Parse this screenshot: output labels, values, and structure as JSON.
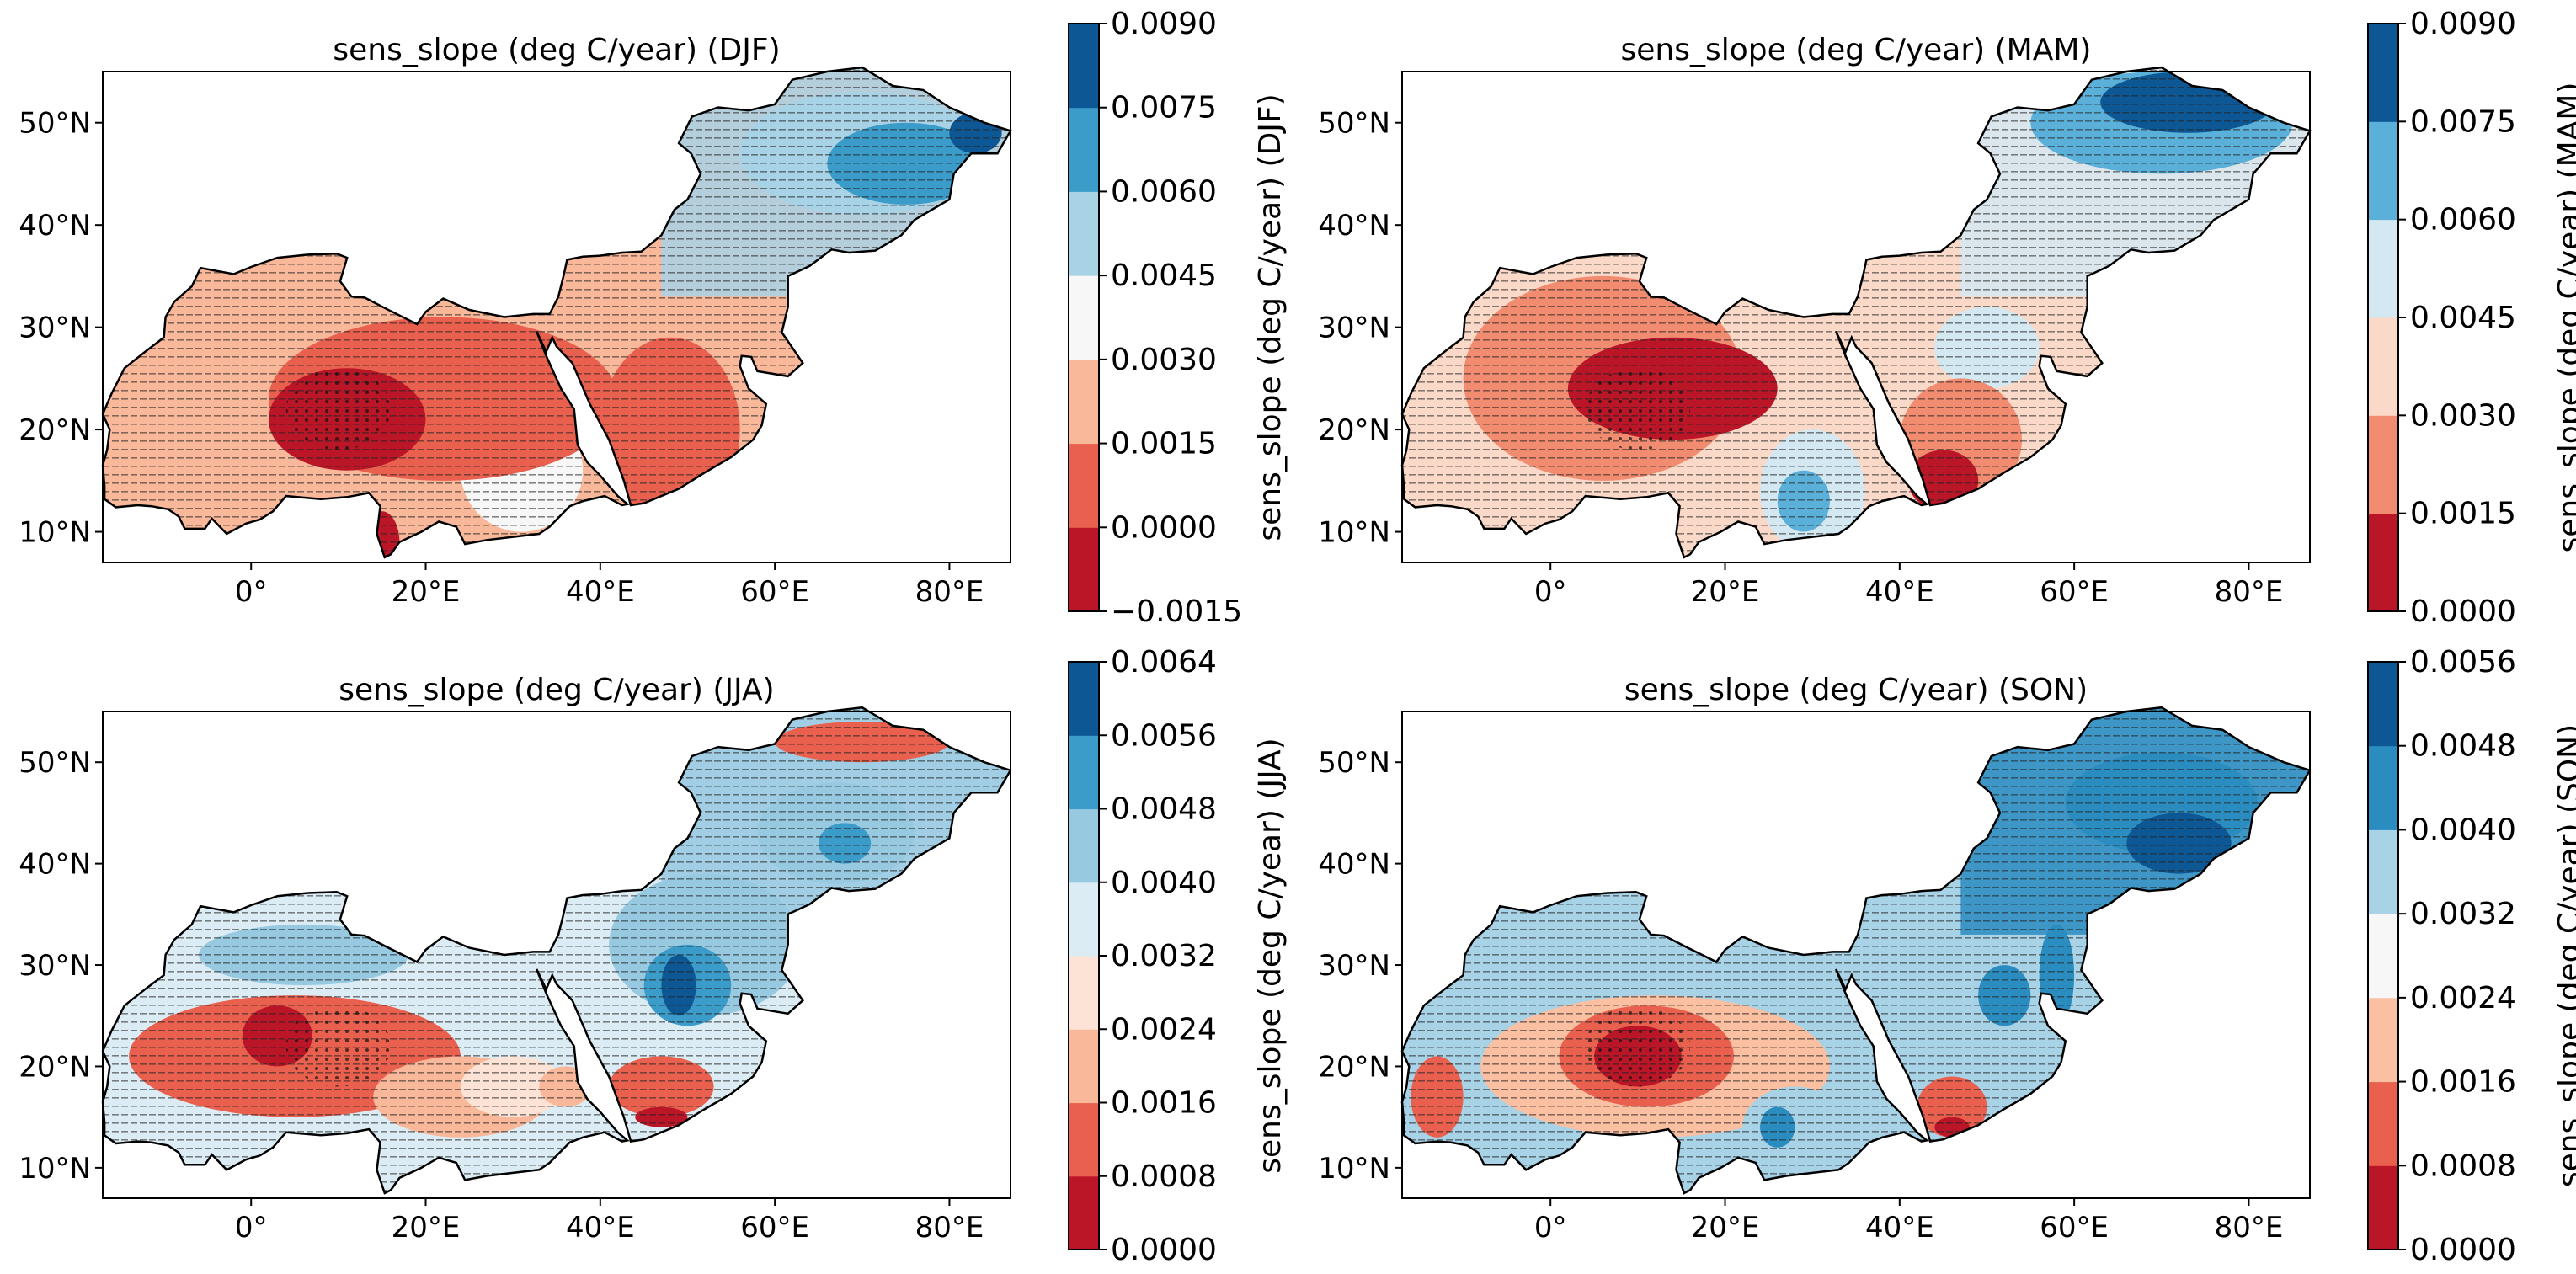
{
  "chart_data": [
    {
      "type": "heatmap",
      "title": "sens_slope (deg C/year) (DJF)",
      "season": "DJF",
      "lon_range": [
        -17,
        87
      ],
      "lat_range": [
        7,
        55
      ],
      "xticks": [
        0,
        20,
        40,
        60,
        80
      ],
      "xtick_labels": [
        "0°",
        "20°E",
        "40°E",
        "60°E",
        "80°E"
      ],
      "yticks": [
        10,
        20,
        30,
        40,
        50
      ],
      "ytick_labels": [
        "10°N",
        "20°N",
        "30°N",
        "40°N",
        "50°N"
      ],
      "colorbar": {
        "label": "sens_slope (deg C/year) (DJF)",
        "levels": [
          -0.0015,
          0.0,
          0.0015,
          0.003,
          0.0045,
          0.006,
          0.0075,
          0.009
        ],
        "tick_labels": [
          "−0.0015",
          "0.0000",
          "0.0015",
          "0.0030",
          "0.0045",
          "0.0060",
          "0.0075",
          "0.0090"
        ],
        "colors": [
          "#bb1628",
          "#e9604e",
          "#f9b89a",
          "#f7f7f7",
          "#a8d2e6",
          "#3b9cc9",
          "#0e5795"
        ]
      },
      "regions": [
        {
          "level": 2,
          "center": [
            -2,
            23
          ],
          "radii": [
            14,
            8
          ]
        },
        {
          "level": 4,
          "center": [
            70,
            47
          ],
          "radii": [
            14,
            6
          ]
        },
        {
          "level": 5,
          "center": [
            75,
            46
          ],
          "radii": [
            9,
            4
          ]
        },
        {
          "level": 3,
          "center": [
            31,
            16
          ],
          "radii": [
            7,
            6
          ]
        },
        {
          "level": 1,
          "center": [
            22,
            23
          ],
          "radii": [
            20,
            8
          ]
        },
        {
          "level": 1,
          "center": [
            48,
            20
          ],
          "radii": [
            8,
            9
          ]
        },
        {
          "level": 0,
          "center": [
            11,
            21
          ],
          "radii": [
            9,
            5
          ]
        },
        {
          "level": 0,
          "center": [
            15,
            9
          ],
          "radii": [
            2,
            3
          ]
        },
        {
          "level": 6,
          "center": [
            83,
            49
          ],
          "radii": [
            3,
            2
          ]
        }
      ]
    },
    {
      "type": "heatmap",
      "title": "sens_slope (deg C/year) (MAM)",
      "season": "MAM",
      "lon_range": [
        -17,
        87
      ],
      "lat_range": [
        7,
        55
      ],
      "xticks": [
        0,
        20,
        40,
        60,
        80
      ],
      "xtick_labels": [
        "0°",
        "20°E",
        "40°E",
        "60°E",
        "80°E"
      ],
      "yticks": [
        10,
        20,
        30,
        40,
        50
      ],
      "ytick_labels": [
        "10°N",
        "20°N",
        "30°N",
        "40°N",
        "50°N"
      ],
      "colorbar": {
        "label": "sens_slope (deg C/year) (MAM)",
        "levels": [
          0.0,
          0.0015,
          0.003,
          0.0045,
          0.006,
          0.0075,
          0.009
        ],
        "tick_labels": [
          "0.0000",
          "0.0015",
          "0.0030",
          "0.0045",
          "0.0060",
          "0.0075",
          "0.0090"
        ],
        "colors": [
          "#bb1628",
          "#f18c70",
          "#fbd9c8",
          "#d3e8f1",
          "#5ab0d8",
          "#0e5795"
        ]
      },
      "regions": [
        {
          "level": 1,
          "center": [
            6,
            25
          ],
          "radii": [
            16,
            10
          ]
        },
        {
          "level": 3,
          "center": [
            30,
            14
          ],
          "radii": [
            6,
            6
          ]
        },
        {
          "level": 4,
          "center": [
            29,
            13
          ],
          "radii": [
            3,
            3
          ]
        },
        {
          "level": 3,
          "center": [
            50,
            28
          ],
          "radii": [
            6,
            4
          ]
        },
        {
          "level": 1,
          "center": [
            47,
            19
          ],
          "radii": [
            7,
            6
          ]
        },
        {
          "level": 0,
          "center": [
            45,
            15
          ],
          "radii": [
            4,
            3
          ]
        },
        {
          "level": 0,
          "center": [
            14,
            24
          ],
          "radii": [
            12,
            5
          ]
        },
        {
          "level": 4,
          "center": [
            70,
            50
          ],
          "radii": [
            15,
            5
          ]
        },
        {
          "level": 5,
          "center": [
            73,
            52
          ],
          "radii": [
            10,
            3
          ]
        }
      ]
    },
    {
      "type": "heatmap",
      "title": "sens_slope (deg C/year) (JJA)",
      "season": "JJA",
      "lon_range": [
        -17,
        87
      ],
      "lat_range": [
        7,
        55
      ],
      "xticks": [
        0,
        20,
        40,
        60,
        80
      ],
      "xtick_labels": [
        "0°",
        "20°E",
        "40°E",
        "60°E",
        "80°E"
      ],
      "yticks": [
        10,
        20,
        30,
        40,
        50
      ],
      "ytick_labels": [
        "10°N",
        "20°N",
        "30°N",
        "40°N",
        "50°N"
      ],
      "colorbar": {
        "label": "sens_slope (deg C/year) (JJA)",
        "levels": [
          0.0,
          0.0008,
          0.0016,
          0.0024,
          0.0032,
          0.004,
          0.0048,
          0.0056,
          0.0064
        ],
        "tick_labels": [
          "0.0000",
          "0.0008",
          "0.0016",
          "0.0024",
          "0.0032",
          "0.0040",
          "0.0048",
          "0.0056",
          "0.0064"
        ],
        "colors": [
          "#bb1628",
          "#e9604e",
          "#f9b89a",
          "#fde3d6",
          "#dcecf4",
          "#97c9e1",
          "#3b9cc9",
          "#0e5795"
        ]
      },
      "regions": [
        {
          "level": 5,
          "center": [
            6,
            31
          ],
          "radii": [
            12,
            3
          ]
        },
        {
          "level": 1,
          "center": [
            5,
            21
          ],
          "radii": [
            19,
            6
          ]
        },
        {
          "level": 0,
          "center": [
            3,
            23
          ],
          "radii": [
            4,
            3
          ]
        },
        {
          "level": 2,
          "center": [
            24,
            17
          ],
          "radii": [
            10,
            4
          ]
        },
        {
          "level": 3,
          "center": [
            30,
            18
          ],
          "radii": [
            6,
            3
          ]
        },
        {
          "level": 2,
          "center": [
            36,
            18
          ],
          "radii": [
            3,
            2
          ]
        },
        {
          "level": 5,
          "center": [
            52,
            32
          ],
          "radii": [
            11,
            7
          ]
        },
        {
          "level": 6,
          "center": [
            50,
            28
          ],
          "radii": [
            5,
            4
          ]
        },
        {
          "level": 7,
          "center": [
            49,
            28
          ],
          "radii": [
            2,
            3
          ]
        },
        {
          "level": 1,
          "center": [
            47,
            18
          ],
          "radii": [
            6,
            3
          ]
        },
        {
          "level": 0,
          "center": [
            47,
            15
          ],
          "radii": [
            3,
            1
          ]
        },
        {
          "level": 5,
          "center": [
            67,
            43
          ],
          "radii": [
            9,
            5
          ]
        },
        {
          "level": 6,
          "center": [
            68,
            42
          ],
          "radii": [
            3,
            2
          ]
        },
        {
          "level": 1,
          "center": [
            70,
            52
          ],
          "radii": [
            10,
            2
          ]
        }
      ]
    },
    {
      "type": "heatmap",
      "title": "sens_slope (deg C/year) (SON)",
      "season": "SON",
      "lon_range": [
        -17,
        87
      ],
      "lat_range": [
        7,
        55
      ],
      "xticks": [
        0,
        20,
        40,
        60,
        80
      ],
      "xtick_labels": [
        "0°",
        "20°E",
        "40°E",
        "60°E",
        "80°E"
      ],
      "yticks": [
        10,
        20,
        30,
        40,
        50
      ],
      "ytick_labels": [
        "10°N",
        "20°N",
        "30°N",
        "40°N",
        "50°N"
      ],
      "colorbar": {
        "label": "sens_slope (deg C/year) (SON)",
        "levels": [
          0.0,
          0.0008,
          0.0016,
          0.0024,
          0.0032,
          0.004,
          0.0048,
          0.0056
        ],
        "tick_labels": [
          "0.0000",
          "0.0008",
          "0.0016",
          "0.0024",
          "0.0032",
          "0.0040",
          "0.0048",
          "0.0056"
        ],
        "colors": [
          "#bb1628",
          "#e9604e",
          "#fbbfa2",
          "#f7f7f7",
          "#a8d2e6",
          "#2b8cc0",
          "#0e5795"
        ]
      },
      "regions": [
        {
          "level": 2,
          "center": [
            12,
            20
          ],
          "radii": [
            20,
            7
          ]
        },
        {
          "level": 1,
          "center": [
            11,
            21
          ],
          "radii": [
            10,
            5
          ]
        },
        {
          "level": 0,
          "center": [
            10,
            21
          ],
          "radii": [
            5,
            3
          ]
        },
        {
          "level": 4,
          "center": [
            28,
            14
          ],
          "radii": [
            6,
            4
          ]
        },
        {
          "level": 5,
          "center": [
            26,
            14
          ],
          "radii": [
            2,
            2
          ]
        },
        {
          "level": 1,
          "center": [
            -13,
            17
          ],
          "radii": [
            3,
            4
          ]
        },
        {
          "level": 1,
          "center": [
            46,
            16
          ],
          "radii": [
            4,
            3
          ]
        },
        {
          "level": 0,
          "center": [
            46,
            14
          ],
          "radii": [
            2,
            1
          ]
        },
        {
          "level": 4,
          "center": [
            52,
            28
          ],
          "radii": [
            5,
            4
          ]
        },
        {
          "level": 5,
          "center": [
            52,
            27
          ],
          "radii": [
            3,
            3
          ]
        },
        {
          "level": 5,
          "center": [
            70,
            46
          ],
          "radii": [
            11,
            5
          ]
        },
        {
          "level": 6,
          "center": [
            72,
            42
          ],
          "radii": [
            6,
            3
          ]
        },
        {
          "level": 5,
          "center": [
            58,
            29
          ],
          "radii": [
            2,
            5
          ]
        }
      ]
    }
  ]
}
